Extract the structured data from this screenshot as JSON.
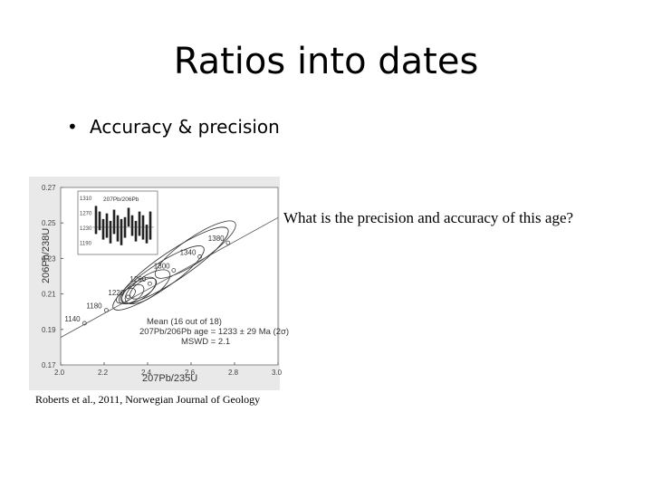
{
  "slide": {
    "title": "Ratios into dates",
    "bullet": "Accuracy & precision",
    "question": "What is the precision and accuracy of this age?",
    "caption": "Roberts et al., 2011, Norwegian Journal of Geology"
  },
  "figure": {
    "inset_label": "207Pb/206Pb",
    "inset_ticks": [
      "1310",
      "1270",
      "1230",
      "1190"
    ],
    "concordia_ages": [
      "1140",
      "1180",
      "1220",
      "1260",
      "1300",
      "1340",
      "1380"
    ],
    "annotation": {
      "line1": "Mean (16 out of 18)",
      "line2": "207Pb/206Pb age = 1233 ± 29 Ma (2σ)",
      "line3": "MSWD = 2.1"
    }
  },
  "chart_data": {
    "type": "scatter",
    "xlabel": "207Pb/235U",
    "ylabel": "206Pb/238U",
    "xlim": [
      2.0,
      3.0
    ],
    "ylim": [
      0.17,
      0.27
    ],
    "x_ticks": [
      "2.0",
      "2.2",
      "2.4",
      "2.6",
      "2.8",
      "3.0"
    ],
    "y_ticks": [
      "0.17",
      "0.19",
      "0.21",
      "0.23",
      "0.25",
      "0.27"
    ],
    "concordia_points": [
      {
        "age": "1140",
        "x": 2.11,
        "y": 0.1935
      },
      {
        "age": "1180",
        "x": 2.21,
        "y": 0.2008
      },
      {
        "age": "1220",
        "x": 2.31,
        "y": 0.2083
      },
      {
        "age": "1260",
        "x": 2.41,
        "y": 0.2158
      },
      {
        "age": "1300",
        "x": 2.52,
        "y": 0.2233
      },
      {
        "age": "1340",
        "x": 2.64,
        "y": 0.231
      },
      {
        "age": "1380",
        "x": 2.77,
        "y": 0.2388
      }
    ],
    "ellipses": [
      {
        "x": 2.33,
        "y": 0.21,
        "rx": 0.06,
        "ry": 0.004
      },
      {
        "x": 2.36,
        "y": 0.212,
        "rx": 0.09,
        "ry": 0.005
      },
      {
        "x": 2.4,
        "y": 0.214,
        "rx": 0.12,
        "ry": 0.006
      },
      {
        "x": 2.45,
        "y": 0.219,
        "rx": 0.25,
        "ry": 0.007
      },
      {
        "x": 2.52,
        "y": 0.226,
        "rx": 0.3,
        "ry": 0.008
      },
      {
        "x": 2.62,
        "y": 0.235,
        "rx": 0.22,
        "ry": 0.007
      },
      {
        "x": 2.3,
        "y": 0.209,
        "rx": 0.05,
        "ry": 0.003
      },
      {
        "x": 2.38,
        "y": 0.213,
        "rx": 0.07,
        "ry": 0.004
      }
    ],
    "inset_bars": [
      {
        "center": 1245,
        "low": 1215,
        "high": 1290
      },
      {
        "center": 1250,
        "low": 1225,
        "high": 1275
      },
      {
        "center": 1230,
        "low": 1200,
        "high": 1255
      },
      {
        "center": 1240,
        "low": 1205,
        "high": 1270
      },
      {
        "center": 1220,
        "low": 1190,
        "high": 1250
      },
      {
        "center": 1250,
        "low": 1215,
        "high": 1280
      },
      {
        "center": 1235,
        "low": 1195,
        "high": 1265
      },
      {
        "center": 1225,
        "low": 1185,
        "high": 1255
      },
      {
        "center": 1230,
        "low": 1205,
        "high": 1260
      },
      {
        "center": 1260,
        "low": 1235,
        "high": 1285
      },
      {
        "center": 1235,
        "low": 1210,
        "high": 1265
      },
      {
        "center": 1220,
        "low": 1195,
        "high": 1250
      },
      {
        "center": 1245,
        "low": 1210,
        "high": 1275
      },
      {
        "center": 1230,
        "low": 1200,
        "high": 1265
      },
      {
        "center": 1215,
        "low": 1190,
        "high": 1240
      },
      {
        "center": 1240,
        "low": 1200,
        "high": 1275
      }
    ],
    "inset_ylim": [
      1170,
      1320
    ],
    "inset_mean": 1233
  }
}
